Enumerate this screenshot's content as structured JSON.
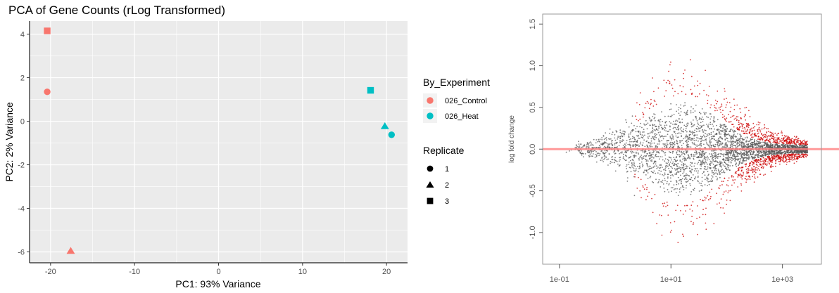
{
  "chart_data": [
    {
      "type": "scatter",
      "title": "PCA of Gene Counts (rLog Transformed)",
      "xlabel": "PC1: 93% Variance",
      "ylabel": "PC2: 2% Variance",
      "xlim": [
        -22.5,
        22.5
      ],
      "ylim": [
        -6.5,
        4.6
      ],
      "xticks": [
        -20,
        -10,
        0,
        10,
        20
      ],
      "yticks": [
        -6,
        -4,
        -2,
        0,
        2,
        4
      ],
      "xtick_labels": [
        "-20",
        "-10",
        "0",
        "10",
        "20"
      ],
      "ytick_labels": [
        "-6",
        "-4",
        "-2",
        "0",
        "2",
        "4"
      ],
      "grid": true,
      "legend_position": "right",
      "legends": [
        {
          "title": "By_Experiment",
          "entries": [
            {
              "label": "026_Control",
              "color": "#F8766D"
            },
            {
              "label": "026_Heat",
              "color": "#00BFC4"
            }
          ]
        },
        {
          "title": "Replicate",
          "entries": [
            {
              "label": "1",
              "shape": "circle"
            },
            {
              "label": "2",
              "shape": "triangle"
            },
            {
              "label": "3",
              "shape": "square"
            }
          ]
        }
      ],
      "points": [
        {
          "x": -20.4,
          "y": 4.15,
          "group": "026_Control",
          "replicate": "3"
        },
        {
          "x": -20.4,
          "y": 1.35,
          "group": "026_Control",
          "replicate": "1"
        },
        {
          "x": -17.6,
          "y": -5.95,
          "group": "026_Control",
          "replicate": "2"
        },
        {
          "x": 18.1,
          "y": 1.42,
          "group": "026_Heat",
          "replicate": "3"
        },
        {
          "x": 19.8,
          "y": -0.22,
          "group": "026_Heat",
          "replicate": "2"
        },
        {
          "x": 20.6,
          "y": -0.62,
          "group": "026_Heat",
          "replicate": "1"
        }
      ]
    },
    {
      "type": "scatter",
      "title": "",
      "xlabel": "",
      "ylabel": "log fold change",
      "x_scale": "log10",
      "xlim": [
        0.05,
        5000
      ],
      "ylim": [
        -1.38,
        1.62
      ],
      "xtick_labels": [
        "1e-01",
        "1e+01",
        "1e+03"
      ],
      "ytick_labels": [
        "-1.0",
        "-0.5",
        "0.0",
        "0.5",
        "1.0",
        "1.5"
      ],
      "grid": false,
      "reference_line": {
        "y": 0,
        "color": "#ff8080"
      },
      "point_colors": {
        "significant": "#cc0000",
        "not_significant": "#555555"
      }
    }
  ]
}
